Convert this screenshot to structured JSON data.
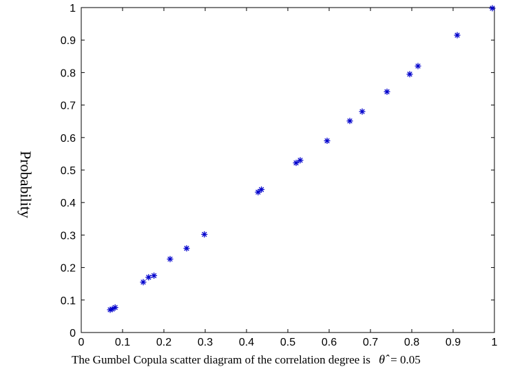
{
  "chart_data": {
    "type": "scatter",
    "title": "",
    "xlabel": "",
    "ylabel": "Probability",
    "xlim": [
      0,
      1
    ],
    "ylim": [
      0,
      1
    ],
    "x_ticks": [
      "0",
      "0.1",
      "0.2",
      "0.3",
      "0.4",
      "0.5",
      "0.6",
      "0.7",
      "0.8",
      "0.9",
      "1"
    ],
    "y_ticks": [
      "0",
      "0.1",
      "0.2",
      "0.3",
      "0.4",
      "0.5",
      "0.6",
      "0.7",
      "0.8",
      "0.9",
      "1"
    ],
    "grid": false,
    "marker": "asterisk",
    "color": "#0000cc",
    "series": [
      {
        "points": [
          {
            "x": 0.07,
            "y": 0.07
          },
          {
            "x": 0.075,
            "y": 0.072
          },
          {
            "x": 0.082,
            "y": 0.077
          },
          {
            "x": 0.15,
            "y": 0.155
          },
          {
            "x": 0.163,
            "y": 0.17
          },
          {
            "x": 0.176,
            "y": 0.175
          },
          {
            "x": 0.215,
            "y": 0.226
          },
          {
            "x": 0.255,
            "y": 0.259
          },
          {
            "x": 0.298,
            "y": 0.302
          },
          {
            "x": 0.428,
            "y": 0.432
          },
          {
            "x": 0.436,
            "y": 0.44
          },
          {
            "x": 0.52,
            "y": 0.522
          },
          {
            "x": 0.53,
            "y": 0.53
          },
          {
            "x": 0.595,
            "y": 0.59
          },
          {
            "x": 0.65,
            "y": 0.651
          },
          {
            "x": 0.68,
            "y": 0.68
          },
          {
            "x": 0.74,
            "y": 0.741
          },
          {
            "x": 0.795,
            "y": 0.795
          },
          {
            "x": 0.815,
            "y": 0.82
          },
          {
            "x": 0.91,
            "y": 0.915
          },
          {
            "x": 0.995,
            "y": 0.998
          }
        ]
      }
    ]
  },
  "caption": {
    "text": "The Gumbel Copula scatter diagram of the correlation degree is",
    "symbol": "θ̂",
    "value": "= 0.05"
  }
}
